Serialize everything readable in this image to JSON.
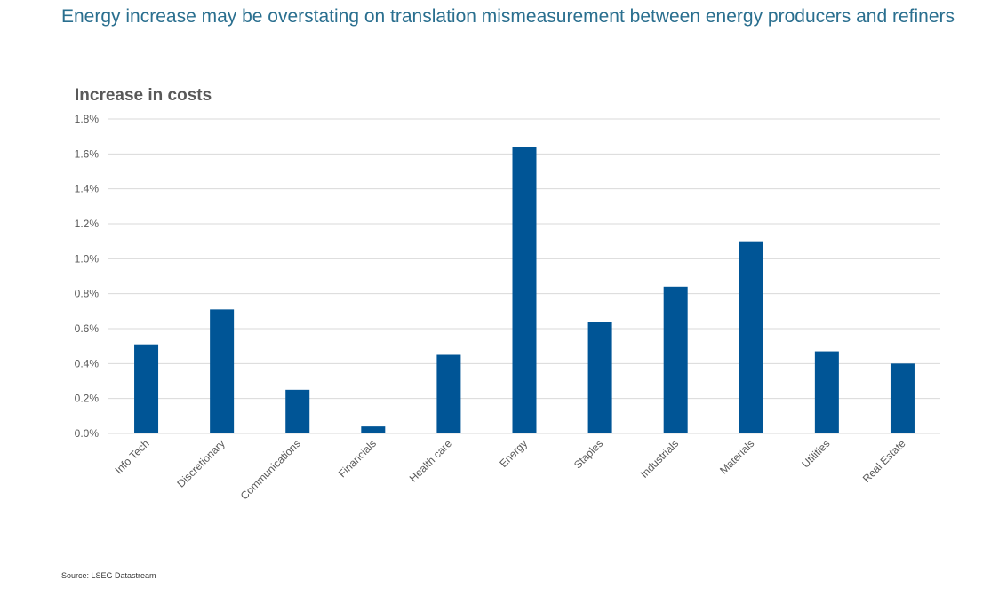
{
  "headline": "Energy increase may be overstating on translation mismeasurement between energy producers and refiners",
  "source": "Source: LSEG Datastream",
  "colors": {
    "bar": "#005596",
    "grid": "#d9d9d9",
    "text": "#595959",
    "headline": "#2a6f8f"
  },
  "chart_data": {
    "type": "bar",
    "title": "Increase in costs",
    "xlabel": "",
    "ylabel": "",
    "categories": [
      "Info Tech",
      "Discretionary",
      "Communications",
      "Financials",
      "Health care",
      "Energy",
      "Staples",
      "Industrials",
      "Materials",
      "Utilities",
      "Real Estate"
    ],
    "values": [
      0.51,
      0.71,
      0.25,
      0.04,
      0.45,
      1.64,
      0.64,
      0.84,
      1.1,
      0.47,
      0.4
    ],
    "unit": "%",
    "ylim": [
      0,
      1.8
    ],
    "yticks": [
      "0.0%",
      "0.2%",
      "0.4%",
      "0.6%",
      "0.8%",
      "1.0%",
      "1.2%",
      "1.4%",
      "1.6%",
      "1.8%"
    ],
    "grid": true,
    "legend": "none"
  }
}
